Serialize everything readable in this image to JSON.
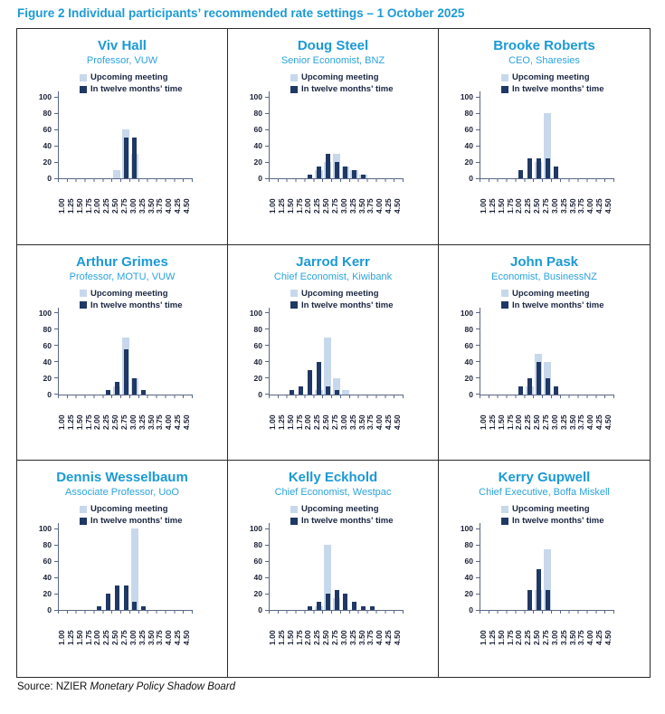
{
  "title": "Figure 2 Individual participants’ recommended rate settings – 1 October 2025",
  "source": {
    "prefix": "Source: NZIER ",
    "italic": "Monetary Policy Shadow Board"
  },
  "legend": {
    "upcoming": "Upcoming meeting",
    "twelve": "In twelve months' time"
  },
  "colors": {
    "accent_cyan": "#1b9ad6",
    "light_bar": "#c8d8ec",
    "dark_bar": "#1f3864",
    "axis_line": "#5a6787",
    "axis_text": "#1a2036",
    "border": "#2b2b2b"
  },
  "chart_data": [
    {
      "type": "bar",
      "title": "Viv Hall",
      "subtitle": "Professor, VUW",
      "categories": [
        "1.00",
        "1.25",
        "1.50",
        "1.75",
        "2.00",
        "2.25",
        "2.50",
        "2.75",
        "3.00",
        "3.25",
        "3.50",
        "3.75",
        "4.00",
        "4.25",
        "4.50"
      ],
      "series": [
        {
          "name": "Upcoming meeting",
          "values": [
            0,
            0,
            0,
            0,
            0,
            0,
            10,
            60,
            30,
            0,
            0,
            0,
            0,
            0,
            0
          ]
        },
        {
          "name": "In twelve months' time",
          "values": [
            0,
            0,
            0,
            0,
            0,
            0,
            0,
            50,
            50,
            0,
            0,
            0,
            0,
            0,
            0
          ]
        }
      ],
      "ylim": [
        0,
        100
      ],
      "yticks": [
        0,
        20,
        40,
        60,
        80,
        100
      ],
      "legend_position": "top",
      "grid": false
    },
    {
      "type": "bar",
      "title": "Doug Steel",
      "subtitle": "Senior Economist, BNZ",
      "categories": [
        "1.00",
        "1.25",
        "1.50",
        "1.75",
        "2.00",
        "2.25",
        "2.50",
        "2.75",
        "3.00",
        "3.25",
        "3.50",
        "3.75",
        "4.00",
        "4.25",
        "4.50"
      ],
      "series": [
        {
          "name": "Upcoming meeting",
          "values": [
            0,
            0,
            0,
            0,
            0,
            10,
            20,
            30,
            15,
            10,
            5,
            0,
            0,
            0,
            0
          ]
        },
        {
          "name": "In twelve months' time",
          "values": [
            0,
            0,
            0,
            0,
            5,
            15,
            30,
            20,
            15,
            10,
            5,
            0,
            0,
            0,
            0
          ]
        }
      ],
      "ylim": [
        0,
        100
      ],
      "yticks": [
        0,
        20,
        40,
        60,
        80,
        100
      ],
      "legend_position": "top",
      "grid": false
    },
    {
      "type": "bar",
      "title": "Brooke Roberts",
      "subtitle": "CEO, Sharesies",
      "categories": [
        "1.00",
        "1.25",
        "1.50",
        "1.75",
        "2.00",
        "2.25",
        "2.50",
        "2.75",
        "3.00",
        "3.25",
        "3.50",
        "3.75",
        "4.00",
        "4.25",
        "4.50"
      ],
      "series": [
        {
          "name": "Upcoming meeting",
          "values": [
            0,
            0,
            0,
            0,
            0,
            0,
            20,
            80,
            0,
            0,
            0,
            0,
            0,
            0,
            0
          ]
        },
        {
          "name": "In twelve months' time",
          "values": [
            0,
            0,
            0,
            0,
            10,
            25,
            25,
            25,
            15,
            0,
            0,
            0,
            0,
            0,
            0
          ]
        }
      ],
      "ylim": [
        0,
        100
      ],
      "yticks": [
        0,
        20,
        40,
        60,
        80,
        100
      ],
      "legend_position": "top",
      "grid": false
    },
    {
      "type": "bar",
      "title": "Arthur Grimes",
      "subtitle": "Professor, MOTU, VUW",
      "categories": [
        "1.00",
        "1.25",
        "1.50",
        "1.75",
        "2.00",
        "2.25",
        "2.50",
        "2.75",
        "3.00",
        "3.25",
        "3.50",
        "3.75",
        "4.00",
        "4.25",
        "4.50"
      ],
      "series": [
        {
          "name": "Upcoming meeting",
          "values": [
            0,
            0,
            0,
            0,
            0,
            0,
            10,
            70,
            20,
            0,
            0,
            0,
            0,
            0,
            0
          ]
        },
        {
          "name": "In twelve months' time",
          "values": [
            0,
            0,
            0,
            0,
            0,
            5,
            15,
            55,
            20,
            5,
            0,
            0,
            0,
            0,
            0
          ]
        }
      ],
      "ylim": [
        0,
        100
      ],
      "yticks": [
        0,
        20,
        40,
        60,
        80,
        100
      ],
      "legend_position": "top",
      "grid": false
    },
    {
      "type": "bar",
      "title": "Jarrod Kerr",
      "subtitle": "Chief Economist, Kiwibank",
      "categories": [
        "1.00",
        "1.25",
        "1.50",
        "1.75",
        "2.00",
        "2.25",
        "2.50",
        "2.75",
        "3.00",
        "3.25",
        "3.50",
        "3.75",
        "4.00",
        "4.25",
        "4.50"
      ],
      "series": [
        {
          "name": "Upcoming meeting",
          "values": [
            0,
            0,
            0,
            0,
            0,
            5,
            70,
            20,
            5,
            0,
            0,
            0,
            0,
            0,
            0
          ]
        },
        {
          "name": "In twelve months' time",
          "values": [
            0,
            0,
            5,
            10,
            30,
            40,
            10,
            5,
            0,
            0,
            0,
            0,
            0,
            0,
            0
          ]
        }
      ],
      "ylim": [
        0,
        100
      ],
      "yticks": [
        0,
        20,
        40,
        60,
        80,
        100
      ],
      "legend_position": "top",
      "grid": false
    },
    {
      "type": "bar",
      "title": "John Pask",
      "subtitle": "Economist, BusinessNZ",
      "categories": [
        "1.00",
        "1.25",
        "1.50",
        "1.75",
        "2.00",
        "2.25",
        "2.50",
        "2.75",
        "3.00",
        "3.25",
        "3.50",
        "3.75",
        "4.00",
        "4.25",
        "4.50"
      ],
      "series": [
        {
          "name": "Upcoming meeting",
          "values": [
            0,
            0,
            0,
            0,
            0,
            10,
            50,
            40,
            0,
            0,
            0,
            0,
            0,
            0,
            0
          ]
        },
        {
          "name": "In twelve months' time",
          "values": [
            0,
            0,
            0,
            0,
            10,
            20,
            40,
            20,
            10,
            0,
            0,
            0,
            0,
            0,
            0
          ]
        }
      ],
      "ylim": [
        0,
        100
      ],
      "yticks": [
        0,
        20,
        40,
        60,
        80,
        100
      ],
      "legend_position": "top",
      "grid": false
    },
    {
      "type": "bar",
      "title": "Dennis Wesselbaum",
      "subtitle": "Associate Professor, UoO",
      "categories": [
        "1.00",
        "1.25",
        "1.50",
        "1.75",
        "2.00",
        "2.25",
        "2.50",
        "2.75",
        "3.00",
        "3.25",
        "3.50",
        "3.75",
        "4.00",
        "4.25",
        "4.50"
      ],
      "series": [
        {
          "name": "Upcoming meeting",
          "values": [
            0,
            0,
            0,
            0,
            0,
            0,
            0,
            0,
            100,
            0,
            0,
            0,
            0,
            0,
            0
          ]
        },
        {
          "name": "In twelve months' time",
          "values": [
            0,
            0,
            0,
            0,
            5,
            20,
            30,
            30,
            10,
            5,
            0,
            0,
            0,
            0,
            0
          ]
        }
      ],
      "ylim": [
        0,
        100
      ],
      "yticks": [
        0,
        20,
        40,
        60,
        80,
        100
      ],
      "legend_position": "top",
      "grid": false
    },
    {
      "type": "bar",
      "title": "Kelly Eckhold",
      "subtitle": "Chief Economist, Westpac",
      "categories": [
        "1.00",
        "1.25",
        "1.50",
        "1.75",
        "2.00",
        "2.25",
        "2.50",
        "2.75",
        "3.00",
        "3.25",
        "3.50",
        "3.75",
        "4.00",
        "4.25",
        "4.50"
      ],
      "series": [
        {
          "name": "Upcoming meeting",
          "values": [
            0,
            0,
            0,
            0,
            0,
            5,
            80,
            15,
            0,
            0,
            0,
            0,
            0,
            0,
            0
          ]
        },
        {
          "name": "In twelve months' time",
          "values": [
            0,
            0,
            0,
            0,
            5,
            10,
            20,
            25,
            20,
            10,
            5,
            5,
            0,
            0,
            0
          ]
        }
      ],
      "ylim": [
        0,
        100
      ],
      "yticks": [
        0,
        20,
        40,
        60,
        80,
        100
      ],
      "legend_position": "top",
      "grid": false
    },
    {
      "type": "bar",
      "title": "Kerry Gupwell",
      "subtitle": "Chief Executive, Boffa Miskell",
      "categories": [
        "1.00",
        "1.25",
        "1.50",
        "1.75",
        "2.00",
        "2.25",
        "2.50",
        "2.75",
        "3.00",
        "3.25",
        "3.50",
        "3.75",
        "4.00",
        "4.25",
        "4.50"
      ],
      "series": [
        {
          "name": "Upcoming meeting",
          "values": [
            0,
            0,
            0,
            0,
            0,
            0,
            25,
            75,
            0,
            0,
            0,
            0,
            0,
            0,
            0
          ]
        },
        {
          "name": "In twelve months' time",
          "values": [
            0,
            0,
            0,
            0,
            0,
            25,
            50,
            25,
            0,
            0,
            0,
            0,
            0,
            0,
            0
          ]
        }
      ],
      "ylim": [
        0,
        100
      ],
      "yticks": [
        0,
        20,
        40,
        60,
        80,
        100
      ],
      "legend_position": "top",
      "grid": false
    }
  ]
}
